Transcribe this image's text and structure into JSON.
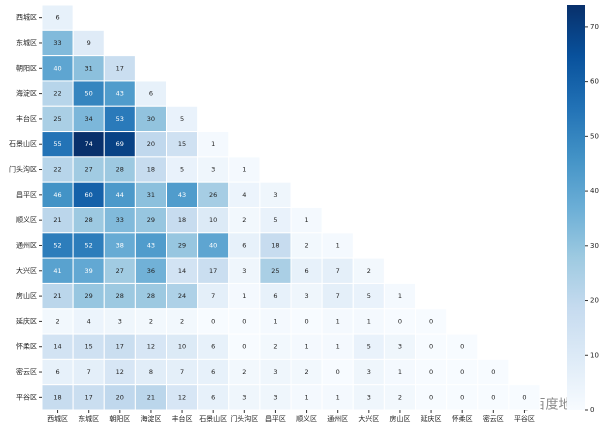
{
  "chart_data": {
    "type": "heatmap",
    "x_categories": [
      "西城区",
      "东城区",
      "朝阳区",
      "海淀区",
      "丰台区",
      "石景山区",
      "门头沟区",
      "昌平区",
      "顺义区",
      "通州区",
      "大兴区",
      "房山区",
      "延庆区",
      "怀柔区",
      "密云区",
      "平谷区"
    ],
    "y_categories": [
      "西城区",
      "东城区",
      "朝阳区",
      "海淀区",
      "丰台区",
      "石景山区",
      "门头沟区",
      "昌平区",
      "顺义区",
      "通州区",
      "大兴区",
      "房山区",
      "延庆区",
      "怀柔区",
      "密云区",
      "平谷区"
    ],
    "values": [
      [
        6
      ],
      [
        33,
        9
      ],
      [
        40,
        31,
        17
      ],
      [
        22,
        50,
        43,
        6
      ],
      [
        25,
        34,
        53,
        30,
        5
      ],
      [
        55,
        74,
        69,
        20,
        15,
        1
      ],
      [
        22,
        27,
        28,
        18,
        5,
        3,
        1
      ],
      [
        46,
        60,
        44,
        31,
        43,
        26,
        4,
        3
      ],
      [
        21,
        28,
        33,
        29,
        18,
        10,
        2,
        5,
        1
      ],
      [
        52,
        52,
        38,
        43,
        29,
        40,
        6,
        18,
        2,
        1
      ],
      [
        41,
        39,
        27,
        36,
        14,
        17,
        3,
        25,
        6,
        7,
        2
      ],
      [
        21,
        29,
        28,
        28,
        24,
        7,
        1,
        6,
        3,
        7,
        5,
        1
      ],
      [
        2,
        4,
        3,
        2,
        2,
        0,
        0,
        1,
        0,
        1,
        1,
        0,
        0
      ],
      [
        14,
        15,
        17,
        12,
        10,
        6,
        0,
        2,
        1,
        1,
        5,
        3,
        0,
        0
      ],
      [
        6,
        7,
        12,
        8,
        7,
        6,
        2,
        3,
        2,
        0,
        3,
        1,
        0,
        0,
        0
      ],
      [
        18,
        17,
        20,
        21,
        12,
        6,
        3,
        3,
        1,
        1,
        3,
        2,
        0,
        0,
        0,
        0
      ]
    ],
    "colormap": [
      "#f7fbff",
      "#deebf7",
      "#c6dbef",
      "#9ecae1",
      "#6baed6",
      "#4292c6",
      "#2171b5",
      "#08519c",
      "#08306b"
    ],
    "zlim": [
      0,
      74
    ],
    "colorbar_ticks": [
      0,
      10,
      20,
      30,
      40,
      50,
      60,
      70
    ],
    "watermark": "@百度地图"
  }
}
